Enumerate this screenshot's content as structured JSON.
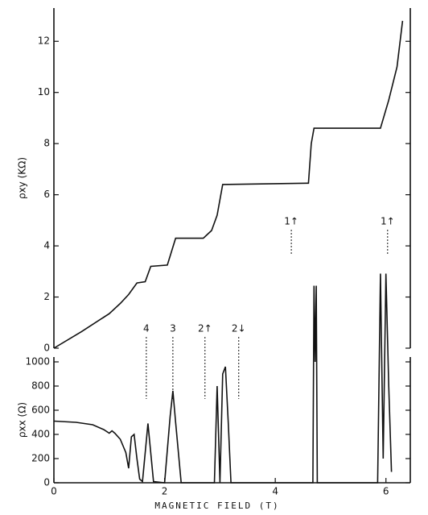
{
  "chart_data": [
    {
      "type": "line",
      "ylabel": "ρxy (KΩ)",
      "xlim": [
        0,
        6.44
      ],
      "ylim": [
        0,
        13.3
      ],
      "yticks": [
        0,
        2,
        4,
        6,
        8,
        10,
        12
      ],
      "x": [
        0,
        0.5,
        1.0,
        1.2,
        1.35,
        1.5,
        1.65,
        1.75,
        2.05,
        2.2,
        2.7,
        2.85,
        2.95,
        3.05,
        4.6,
        4.65,
        4.7,
        5.9,
        6.05,
        6.2,
        6.3
      ],
      "series": [
        {
          "name": "ρxy",
          "color": "#111111",
          "values": [
            0,
            0.65,
            1.35,
            1.75,
            2.1,
            2.55,
            2.6,
            3.2,
            3.25,
            4.3,
            4.3,
            4.6,
            5.2,
            6.4,
            6.45,
            8.0,
            8.6,
            8.6,
            9.7,
            11.0,
            12.8
          ]
        }
      ]
    },
    {
      "type": "line",
      "xlabel": "MAGNETIC FIELD (T)",
      "ylabel": "ρxx (Ω)",
      "xlim": [
        0,
        6.44
      ],
      "ylim": [
        0,
        1040
      ],
      "xticks": [
        0,
        2,
        4,
        6
      ],
      "yticks": [
        0,
        200,
        400,
        600,
        800,
        1000
      ],
      "x": [
        0,
        0.4,
        0.7,
        0.9,
        1.0,
        1.05,
        1.1,
        1.2,
        1.3,
        1.35,
        1.4,
        1.45,
        1.5,
        1.55,
        1.6,
        1.7,
        1.8,
        2.0,
        2.1,
        2.15,
        2.2,
        2.3,
        2.9,
        2.95,
        3.0,
        3.05,
        3.1,
        3.15,
        3.2,
        4.68,
        4.7,
        4.72,
        4.74,
        4.76,
        5.85,
        5.9,
        5.95,
        6.0,
        6.05,
        6.1
      ],
      "series": [
        {
          "name": "ρxx",
          "color": "#111111",
          "values": [
            510,
            500,
            480,
            440,
            410,
            430,
            410,
            360,
            250,
            120,
            380,
            400,
            200,
            30,
            10,
            490,
            10,
            0,
            550,
            760,
            500,
            0,
            0,
            800,
            0,
            900,
            960,
            500,
            0,
            0,
            1630,
            1000,
            1630,
            0,
            0,
            1730,
            200,
            1730,
            800,
            90
          ]
        }
      ],
      "annotations": [
        {
          "text": "4",
          "x": 1.67
        },
        {
          "text": "3",
          "x": 2.15
        },
        {
          "text": "2↑",
          "x": 2.73
        },
        {
          "text": "2↓",
          "x": 3.34
        },
        {
          "text": "1↑",
          "x": 4.29
        },
        {
          "text": "1↑",
          "x": 6.03
        }
      ]
    }
  ]
}
